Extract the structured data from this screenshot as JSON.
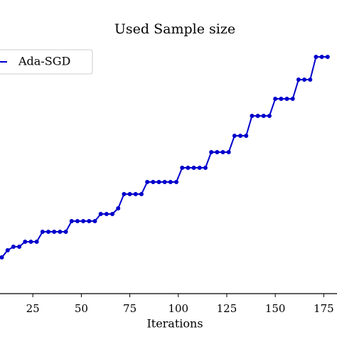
{
  "chart_data": {
    "type": "line",
    "title": "Used Sample size",
    "x_label": "Iterations",
    "x": [
      9,
      12,
      15,
      18,
      21,
      24,
      27,
      30,
      33,
      36,
      39,
      42,
      45,
      48,
      51,
      54,
      57,
      60,
      63,
      66,
      69,
      72,
      75,
      78,
      81,
      84,
      87,
      90,
      93,
      96,
      99,
      102,
      105,
      108,
      111,
      114,
      117,
      120,
      123,
      126,
      129,
      132,
      135,
      138,
      141,
      144,
      147,
      150,
      153,
      156,
      159,
      162,
      165,
      168,
      171,
      174,
      177
    ],
    "series": [
      {
        "name": "Ada-SGD",
        "color": "#0000cc",
        "values": [
          51,
          61,
          66,
          66,
          73,
          73,
          73,
          87,
          87,
          87,
          87,
          87,
          102,
          102,
          102,
          102,
          102,
          112,
          112,
          112,
          120,
          140,
          140,
          140,
          140,
          157,
          157,
          157,
          157,
          157,
          157,
          177,
          177,
          177,
          177,
          177,
          199,
          199,
          199,
          199,
          222,
          222,
          222,
          250,
          250,
          250,
          250,
          274,
          274,
          274,
          274,
          301,
          301,
          301,
          333,
          333,
          333
        ]
      }
    ],
    "xlim": [
      0,
      180
    ],
    "xticks": [
      25,
      50,
      75,
      100,
      125,
      150,
      175
    ],
    "ylim": [
      0,
      373
    ],
    "legend": "upper left"
  }
}
